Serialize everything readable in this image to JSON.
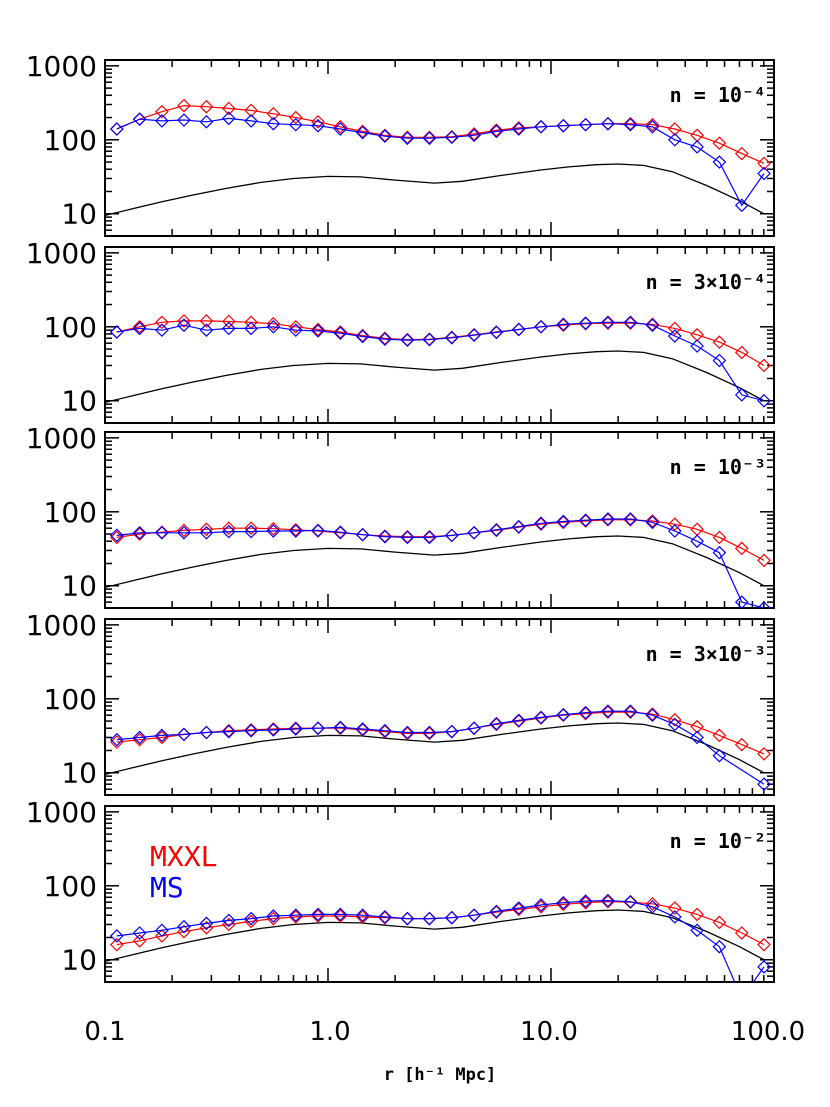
{
  "colors": {
    "mxxl": "#ff0000",
    "ms": "#0000ff",
    "model": "#000000",
    "axes": "#000000"
  },
  "figure": {
    "xlabel": "r [h⁻¹ Mpc]",
    "x_tick_labels": [
      "0.1",
      "1.0",
      "10.0",
      "100.0"
    ],
    "y_tick_labels": [
      "10",
      "100",
      "1000"
    ],
    "legend": {
      "mxxl": "MXXL",
      "ms": "MS",
      "placement": "upper-left of bottom panel"
    }
  },
  "chart_data": [
    {
      "type": "line",
      "scale": "log-log",
      "xlim": [
        0.1,
        100
      ],
      "ylim": [
        5,
        1200
      ],
      "annotation": "n = 10⁻⁴",
      "series": [
        {
          "name": "MXXL",
          "x": [
            0.113,
            0.143,
            0.18,
            0.226,
            0.285,
            0.359,
            0.452,
            0.569,
            0.717,
            0.902,
            1.136,
            1.43,
            1.8,
            2.27,
            2.85,
            3.59,
            4.52,
            5.69,
            7.17,
            9.02,
            11.36,
            14.3,
            18.0,
            22.7,
            28.5,
            35.9,
            45.2,
            56.9,
            71.7,
            90.2
          ],
          "y": [
            140,
            190,
            240,
            290,
            280,
            265,
            250,
            225,
            200,
            175,
            150,
            130,
            115,
            108,
            108,
            110,
            120,
            135,
            145,
            150,
            155,
            160,
            165,
            165,
            160,
            140,
            115,
            90,
            65,
            48
          ]
        },
        {
          "name": "MS",
          "x": [
            0.113,
            0.143,
            0.18,
            0.226,
            0.285,
            0.359,
            0.452,
            0.569,
            0.717,
            0.902,
            1.136,
            1.43,
            1.8,
            2.27,
            2.85,
            3.59,
            4.52,
            5.69,
            7.17,
            9.02,
            11.36,
            14.3,
            18.0,
            22.7,
            28.5,
            35.9,
            45.2,
            56.9,
            71.7,
            90.2
          ],
          "y": [
            140,
            190,
            180,
            185,
            175,
            195,
            180,
            165,
            160,
            155,
            140,
            125,
            112,
            105,
            105,
            108,
            115,
            130,
            140,
            150,
            155,
            160,
            165,
            160,
            150,
            100,
            80,
            50,
            13,
            35
          ]
        }
      ]
    },
    {
      "type": "line",
      "scale": "log-log",
      "xlim": [
        0.1,
        100
      ],
      "ylim": [
        5,
        1200
      ],
      "annotation": "n = 3×10⁻⁴",
      "series": [
        {
          "name": "MXXL",
          "x": [
            0.113,
            0.143,
            0.18,
            0.226,
            0.285,
            0.359,
            0.452,
            0.569,
            0.717,
            0.902,
            1.136,
            1.43,
            1.8,
            2.27,
            2.85,
            3.59,
            4.52,
            5.69,
            7.17,
            9.02,
            11.36,
            14.3,
            18.0,
            22.7,
            28.5,
            35.9,
            45.2,
            56.9,
            71.7,
            90.2
          ],
          "y": [
            85,
            100,
            115,
            120,
            120,
            118,
            115,
            110,
            100,
            92,
            85,
            76,
            70,
            67,
            68,
            72,
            78,
            85,
            92,
            100,
            105,
            110,
            112,
            112,
            108,
            95,
            78,
            62,
            45,
            30
          ]
        },
        {
          "name": "MS",
          "x": [
            0.113,
            0.143,
            0.18,
            0.226,
            0.285,
            0.359,
            0.452,
            0.569,
            0.717,
            0.902,
            1.136,
            1.43,
            1.8,
            2.27,
            2.85,
            3.59,
            4.52,
            5.69,
            7.17,
            9.02,
            11.36,
            14.3,
            18.0,
            22.7,
            28.5,
            35.9,
            45.2,
            56.9,
            71.7,
            90.2
          ],
          "y": [
            85,
            95,
            90,
            105,
            90,
            95,
            95,
            100,
            90,
            88,
            82,
            74,
            68,
            66,
            67,
            71,
            77,
            84,
            92,
            100,
            108,
            112,
            115,
            115,
            105,
            75,
            55,
            35,
            12,
            10
          ]
        }
      ]
    },
    {
      "type": "line",
      "scale": "log-log",
      "xlim": [
        0.1,
        100
      ],
      "ylim": [
        5,
        1200
      ],
      "annotation": "n = 10⁻³",
      "series": [
        {
          "name": "MXXL",
          "x": [
            0.113,
            0.143,
            0.18,
            0.226,
            0.285,
            0.359,
            0.452,
            0.569,
            0.717,
            0.902,
            1.136,
            1.43,
            1.8,
            2.27,
            2.85,
            3.59,
            4.52,
            5.69,
            7.17,
            9.02,
            11.36,
            14.3,
            18.0,
            22.7,
            28.5,
            35.9,
            45.2,
            56.9,
            71.7,
            90.2
          ],
          "y": [
            45,
            50,
            53,
            56,
            58,
            60,
            60,
            59,
            57,
            55,
            52,
            49,
            47,
            46,
            46,
            48,
            52,
            56,
            62,
            68,
            72,
            75,
            78,
            78,
            75,
            68,
            58,
            45,
            32,
            22
          ]
        },
        {
          "name": "MS",
          "x": [
            0.113,
            0.143,
            0.18,
            0.226,
            0.285,
            0.359,
            0.452,
            0.569,
            0.717,
            0.902,
            1.136,
            1.43,
            1.8,
            2.27,
            2.85,
            3.59,
            4.52,
            5.69,
            7.17,
            9.02,
            11.36,
            14.3,
            18.0,
            22.7,
            28.5,
            35.9,
            45.2,
            56.9,
            71.7,
            90.2
          ],
          "y": [
            48,
            52,
            52,
            52,
            52,
            54,
            54,
            55,
            55,
            56,
            53,
            49,
            46,
            45,
            45,
            48,
            52,
            57,
            63,
            70,
            74,
            77,
            80,
            80,
            72,
            55,
            40,
            28,
            6,
            5
          ]
        }
      ]
    },
    {
      "type": "line",
      "scale": "log-log",
      "xlim": [
        0.1,
        100
      ],
      "ylim": [
        5,
        1200
      ],
      "annotation": "n = 3×10⁻³",
      "series": [
        {
          "name": "MXXL",
          "x": [
            0.113,
            0.143,
            0.18,
            0.226,
            0.285,
            0.359,
            0.452,
            0.569,
            0.717,
            0.902,
            1.136,
            1.43,
            1.8,
            2.27,
            2.85,
            3.59,
            4.52,
            5.69,
            7.17,
            9.02,
            11.36,
            14.3,
            18.0,
            22.7,
            28.5,
            35.9,
            45.2,
            56.9,
            71.7,
            90.2
          ],
          "y": [
            26,
            28,
            30,
            33,
            35,
            37,
            38,
            39,
            40,
            40,
            40,
            38,
            36,
            34,
            34,
            36,
            40,
            45,
            50,
            55,
            60,
            63,
            66,
            66,
            62,
            52,
            42,
            32,
            24,
            18
          ]
        },
        {
          "name": "MS",
          "x": [
            0.113,
            0.143,
            0.18,
            0.226,
            0.285,
            0.359,
            0.452,
            0.569,
            0.717,
            0.902,
            1.136,
            1.43,
            1.8,
            2.27,
            2.85,
            3.59,
            4.52,
            5.69,
            7.17,
            9.02,
            11.36,
            14.3,
            18.0,
            22.7,
            28.5,
            35.9,
            45.2,
            56.9,
            71.7,
            90.2
          ],
          "y": [
            28,
            30,
            32,
            33,
            35,
            36,
            37,
            38,
            39,
            40,
            41,
            39,
            37,
            35,
            35,
            36,
            40,
            46,
            51,
            56,
            61,
            65,
            68,
            68,
            60,
            45,
            30,
            17,
            null,
            7
          ]
        }
      ]
    },
    {
      "type": "line",
      "scale": "log-log",
      "xlim": [
        0.1,
        100
      ],
      "ylim": [
        5,
        1200
      ],
      "annotation": "n = 10⁻²",
      "series": [
        {
          "name": "MXXL",
          "x": [
            0.113,
            0.143,
            0.18,
            0.226,
            0.285,
            0.359,
            0.452,
            0.569,
            0.717,
            0.902,
            1.136,
            1.43,
            1.8,
            2.27,
            2.85,
            3.59,
            4.52,
            5.69,
            7.17,
            9.02,
            11.36,
            14.3,
            18.0,
            22.7,
            28.5,
            35.9,
            45.2,
            56.9,
            71.7,
            90.2
          ],
          "y": [
            16,
            18,
            21,
            24,
            27,
            30,
            33,
            36,
            38,
            39,
            39,
            38,
            37,
            36,
            36,
            37,
            40,
            44,
            48,
            52,
            56,
            59,
            61,
            60,
            57,
            50,
            41,
            32,
            23,
            16
          ]
        },
        {
          "name": "MS",
          "x": [
            0.113,
            0.143,
            0.18,
            0.226,
            0.285,
            0.359,
            0.452,
            0.569,
            0.717,
            0.902,
            1.136,
            1.43,
            1.8,
            2.27,
            2.85,
            3.59,
            4.52,
            5.69,
            7.17,
            9.02,
            11.36,
            14.3,
            18.0,
            22.7,
            28.5,
            35.9,
            45.2,
            56.9,
            71.7,
            90.2
          ],
          "y": [
            21,
            23,
            25,
            28,
            31,
            34,
            36,
            39,
            40,
            41,
            41,
            40,
            38,
            36,
            36,
            37,
            40,
            45,
            50,
            55,
            59,
            62,
            63,
            61,
            52,
            38,
            25,
            15,
            3,
            8
          ]
        }
      ]
    }
  ]
}
